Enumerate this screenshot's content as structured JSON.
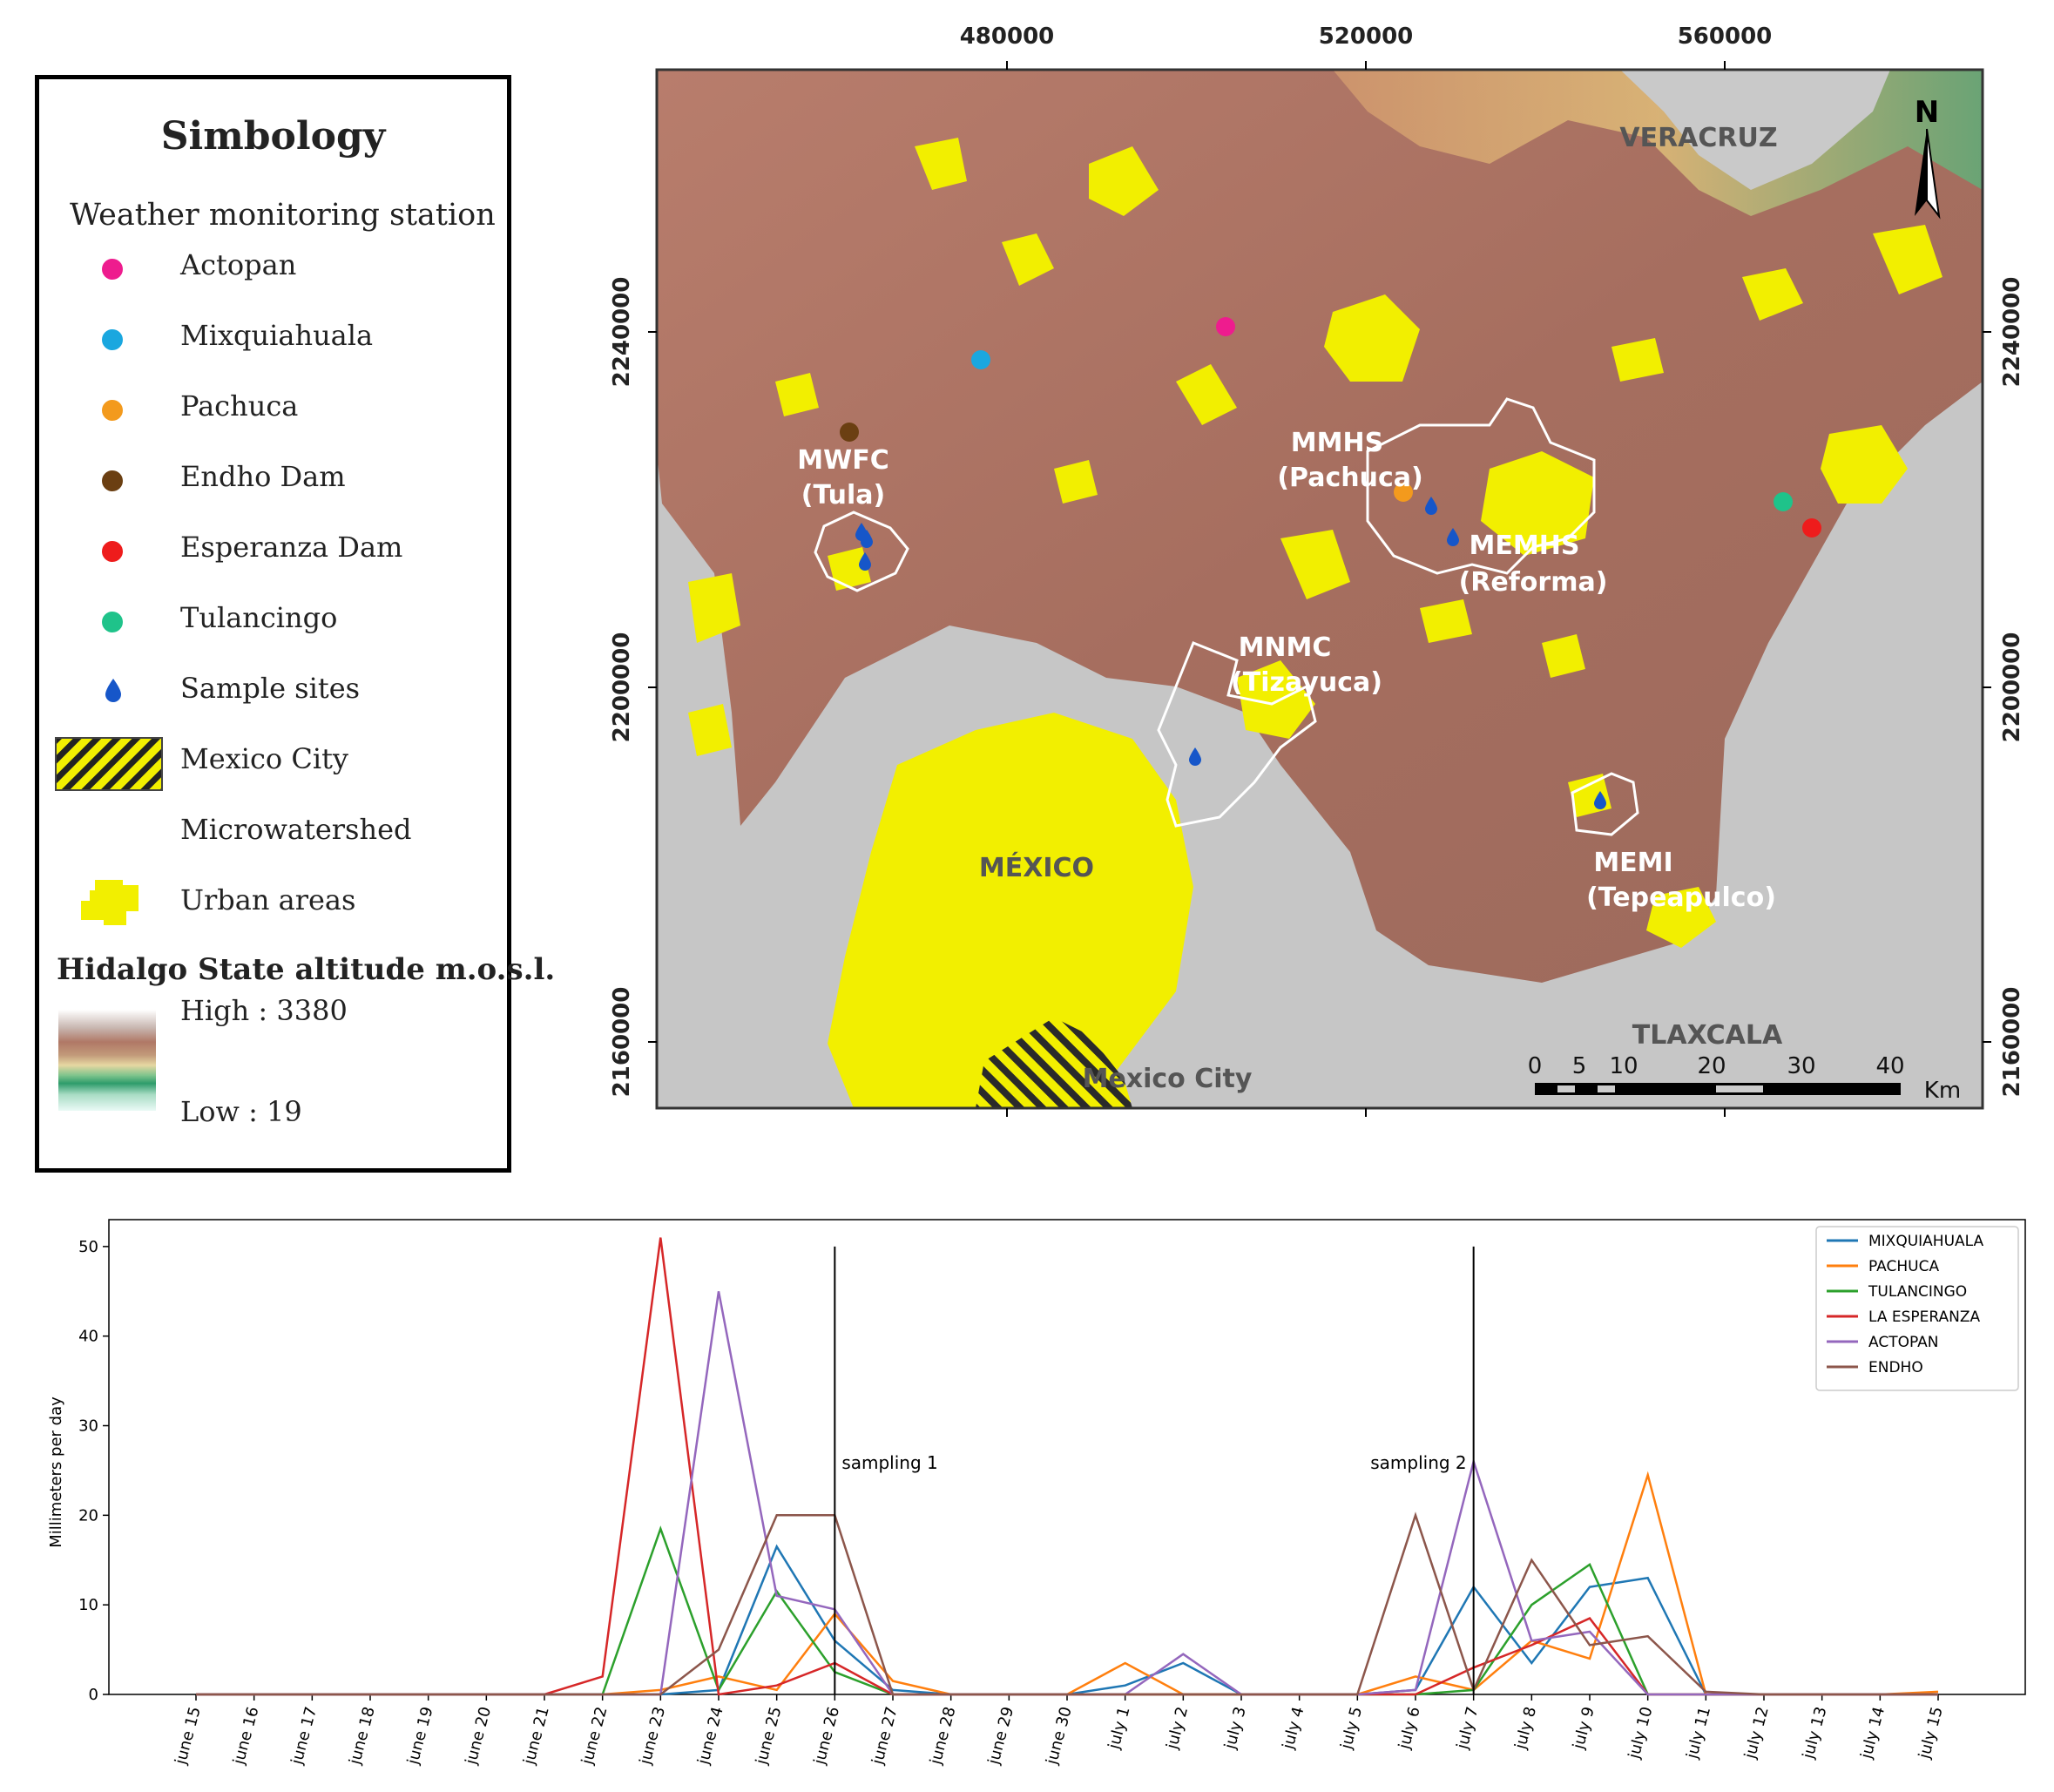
{
  "legend": {
    "title": "Simbology",
    "subtitle": "Weather monitoring station",
    "items": [
      {
        "label": "Actopan",
        "color": "#ee1c8e",
        "icon": "circle-icon"
      },
      {
        "label": "Mixquiahuala",
        "color": "#1aa7df",
        "icon": "circle-icon"
      },
      {
        "label": "Pachuca",
        "color": "#f39a1d",
        "icon": "circle-icon"
      },
      {
        "label": "Endho Dam",
        "color": "#6b3f12",
        "icon": "circle-icon"
      },
      {
        "label": "Esperanza Dam",
        "color": "#ee1c1c",
        "icon": "circle-icon"
      },
      {
        "label": "Tulancingo",
        "color": "#1fc38a",
        "icon": "circle-icon"
      },
      {
        "label": "Sample sites",
        "color": "#1656c9",
        "icon": "droplet-icon"
      },
      {
        "label": "Mexico City",
        "color": "#f2ef00",
        "icon": "hatched-box-icon"
      },
      {
        "label": "Microwatershed",
        "color": "#ffffff",
        "icon": "outline-icon"
      },
      {
        "label": "Urban areas",
        "color": "#f2ef00",
        "icon": "urban-patch-icon"
      }
    ],
    "altitude_title": "Hidalgo State altitude m.o.s.l.",
    "high_label": "High : 3380",
    "low_label": "Low : 19"
  },
  "map": {
    "x_ticks": [
      "480000",
      "520000",
      "560000"
    ],
    "y_ticks": [
      "2240000",
      "2200000",
      "2160000"
    ],
    "north_label": "N",
    "regions": {
      "veracruz": "VERACRUZ",
      "mexico": "MÉXICO",
      "tlaxcala": "TLAXCALA",
      "mexico_city": "Mexico City"
    },
    "watersheds": [
      {
        "code": "MWFC",
        "name": "(Tula)"
      },
      {
        "code": "MMHS",
        "name": "(Pachuca)"
      },
      {
        "code": "MEMHS",
        "name": "(Reforma)"
      },
      {
        "code": "MNMC",
        "name": "(Tizayuca)"
      },
      {
        "code": "MEMI",
        "name": "(Tepeapulco)"
      }
    ],
    "scalebar": {
      "ticks": [
        "0",
        "5",
        "10",
        "20",
        "30",
        "40"
      ],
      "unit": "Km"
    }
  },
  "chart_data": {
    "type": "line",
    "title": "",
    "xlabel": "",
    "ylabel": "Millimeters per day",
    "ylim": [
      0,
      53
    ],
    "yticks": [
      0,
      10,
      20,
      30,
      40,
      50
    ],
    "legend_position": "top-right",
    "categories": [
      "june 15",
      "june 16",
      "june 17",
      "june 18",
      "june 19",
      "june 20",
      "june 21",
      "june 22",
      "june 23",
      "june 24",
      "june 25",
      "june 26",
      "june 27",
      "june 28",
      "june 29",
      "june 30",
      "july 1",
      "july 2",
      "july 3",
      "july 4",
      "july 5",
      "july 6",
      "july 7",
      "july 8",
      "july 9",
      "july 10",
      "july 11",
      "july 12",
      "july 13",
      "july 14",
      "july 15"
    ],
    "series": [
      {
        "name": "MIXQUIAHUALA",
        "color": "#1f77b4",
        "values": [
          0,
          0,
          0,
          0,
          0,
          0,
          0,
          0,
          0,
          0.5,
          16.5,
          6,
          0.5,
          0,
          0,
          0,
          1,
          3.5,
          0,
          0,
          0,
          0.5,
          12,
          3.5,
          12,
          13,
          0,
          0,
          0,
          0,
          0
        ]
      },
      {
        "name": "PACHUCA",
        "color": "#ff7f0e",
        "values": [
          0,
          0,
          0,
          0,
          0,
          0,
          0,
          0,
          0.5,
          2,
          0.5,
          9,
          1.5,
          0,
          0,
          0,
          3.5,
          0,
          0,
          0,
          0,
          2,
          0.5,
          6,
          4,
          24.5,
          0,
          0,
          0,
          0,
          0.3
        ]
      },
      {
        "name": "TULANCINGO",
        "color": "#2ca02c",
        "values": [
          0,
          0,
          0,
          0,
          0,
          0,
          0,
          0,
          18.5,
          0.5,
          11.5,
          2.5,
          0,
          0,
          0,
          0,
          0,
          0,
          0,
          0,
          0,
          0,
          0.5,
          10,
          14.5,
          0,
          0,
          0,
          0,
          0,
          0
        ]
      },
      {
        "name": "LA ESPERANZA",
        "color": "#d62728",
        "values": [
          0,
          0,
          0,
          0,
          0,
          0,
          0,
          2,
          51,
          0,
          1,
          3.5,
          0,
          0,
          0,
          0,
          0,
          0,
          0,
          0,
          0,
          0,
          3,
          5.5,
          8.5,
          0,
          0,
          0,
          0,
          0,
          0
        ]
      },
      {
        "name": "ACTOPAN",
        "color": "#9467bd",
        "values": [
          0,
          0,
          0,
          0,
          0,
          0,
          0,
          0,
          0,
          45,
          11,
          9.5,
          0,
          0,
          0,
          0,
          0,
          4.5,
          0,
          0,
          0,
          0.5,
          26,
          6,
          7,
          0,
          0,
          0,
          0,
          0,
          0
        ]
      },
      {
        "name": "ENDHO",
        "color": "#8c564b",
        "values": [
          0,
          0,
          0,
          0,
          0,
          0,
          0,
          0,
          0,
          5,
          20,
          20,
          0,
          0,
          0,
          0,
          0,
          0,
          0,
          0,
          0,
          20,
          0.5,
          15,
          5.5,
          6.5,
          0.3,
          0,
          0,
          0,
          0
        ]
      }
    ],
    "annotations": [
      {
        "label": "sampling 1",
        "at": "june 26",
        "from": 0,
        "to": 50
      },
      {
        "label": "sampling 2",
        "at": "july 7",
        "from": 0,
        "to": 50
      }
    ]
  }
}
